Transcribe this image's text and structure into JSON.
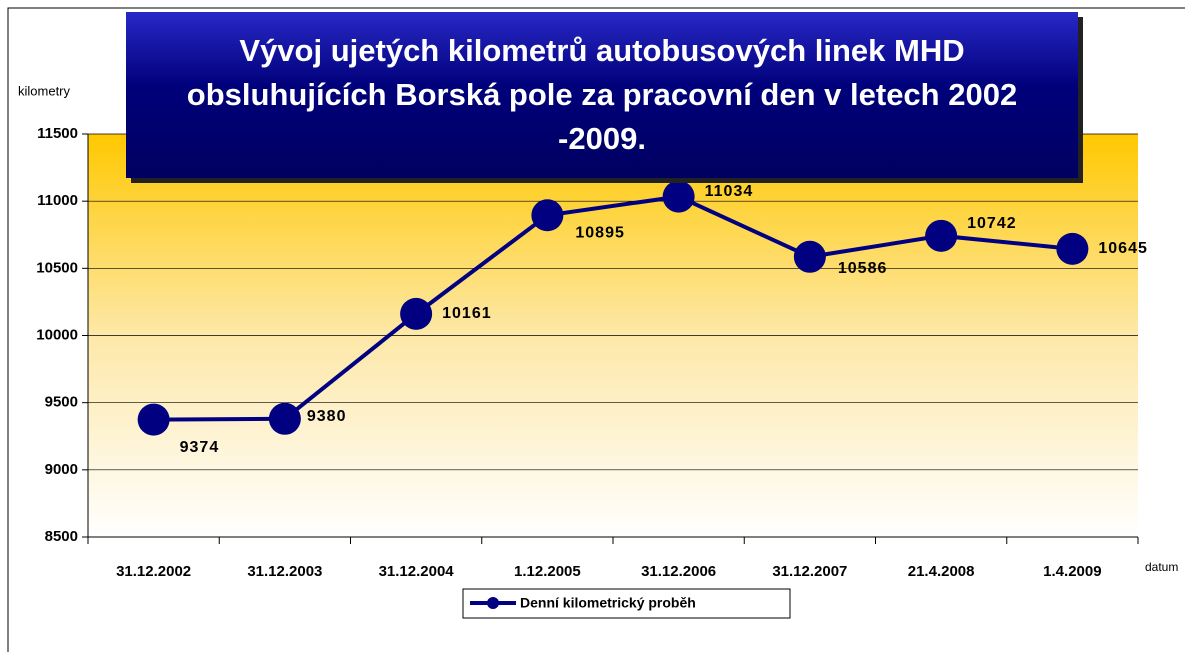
{
  "chart_data": {
    "type": "line",
    "title": "Vývoj ujetých kilometrů autobusových linek MHD obsluhujících Borská pole za pracovní den v letech 2002 -2009.",
    "y_label": "kilometry",
    "x_label": "datum",
    "categories": [
      "31.12.2002",
      "31.12.2003",
      "31.12.2004",
      "1.12.2005",
      "31.12.2006",
      "31.12.2007",
      "21.4.2008",
      "1.4.2009"
    ],
    "series": [
      {
        "name": "Denní kilometrický proběh",
        "color": "#000080",
        "values": [
          9374,
          9380,
          10161,
          10895,
          11034,
          10586,
          10742,
          10645
        ]
      }
    ],
    "ylim": [
      8500,
      11500
    ],
    "yticks": [
      8500,
      9000,
      9500,
      10000,
      10500,
      11000,
      11500
    ],
    "grid": true
  }
}
